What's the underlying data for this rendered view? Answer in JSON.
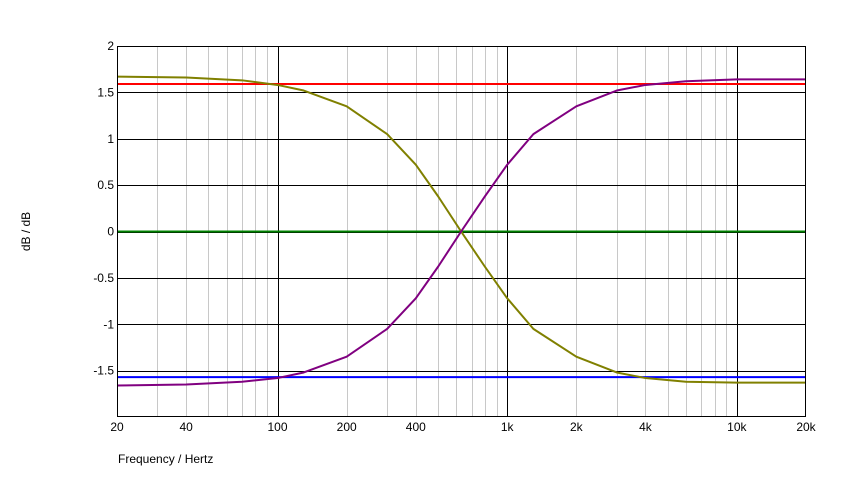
{
  "chart_data": {
    "type": "line",
    "xscale": "log",
    "xlim": [
      20,
      20000
    ],
    "ylim": [
      -2,
      2
    ],
    "xlabel": "Frequency / Hertz",
    "ylabel": "dB / dB",
    "xticks": [
      {
        "value": 20,
        "label": "20"
      },
      {
        "value": 40,
        "label": "40"
      },
      {
        "value": 100,
        "label": "100"
      },
      {
        "value": 200,
        "label": "200"
      },
      {
        "value": 400,
        "label": "400"
      },
      {
        "value": 1000,
        "label": "1k"
      },
      {
        "value": 2000,
        "label": "2k"
      },
      {
        "value": 4000,
        "label": "4k"
      },
      {
        "value": 10000,
        "label": "10k"
      },
      {
        "value": 20000,
        "label": "20k"
      }
    ],
    "yticks": [
      {
        "value": 2,
        "label": "2"
      },
      {
        "value": 1.5,
        "label": "1.5"
      },
      {
        "value": 1,
        "label": "1"
      },
      {
        "value": 0.5,
        "label": "0.5"
      },
      {
        "value": 0,
        "label": "0"
      },
      {
        "value": -0.5,
        "label": "-0.5"
      },
      {
        "value": -1,
        "label": "-1"
      },
      {
        "value": -1.5,
        "label": "-1.5"
      }
    ],
    "grid": true,
    "series": [
      {
        "color": "#ff0000",
        "x": [
          20,
          20000
        ],
        "y": [
          1.59,
          1.59
        ]
      },
      {
        "color": "#0000ff",
        "x": [
          20,
          20000
        ],
        "y": [
          -1.57,
          -1.57
        ]
      },
      {
        "color": "#008000",
        "x": [
          20,
          20000
        ],
        "y": [
          0,
          0
        ]
      },
      {
        "color": "#808000",
        "x": [
          20,
          40,
          70,
          100,
          130,
          200,
          300,
          400,
          500,
          630,
          800,
          1000,
          1300,
          2000,
          3000,
          4000,
          6000,
          10000,
          20000
        ],
        "y": [
          1.67,
          1.66,
          1.63,
          1.58,
          1.52,
          1.35,
          1.05,
          0.72,
          0.38,
          0.0,
          -0.38,
          -0.72,
          -1.05,
          -1.35,
          -1.52,
          -1.58,
          -1.62,
          -1.63,
          -1.63
        ]
      },
      {
        "color": "#800080",
        "x": [
          20,
          40,
          70,
          100,
          130,
          200,
          300,
          400,
          500,
          630,
          800,
          1000,
          1300,
          2000,
          3000,
          4000,
          6000,
          10000,
          20000
        ],
        "y": [
          -1.66,
          -1.65,
          -1.62,
          -1.58,
          -1.52,
          -1.35,
          -1.05,
          -0.72,
          -0.38,
          0.0,
          0.38,
          0.72,
          1.05,
          1.35,
          1.52,
          1.58,
          1.62,
          1.64,
          1.64
        ]
      }
    ]
  }
}
